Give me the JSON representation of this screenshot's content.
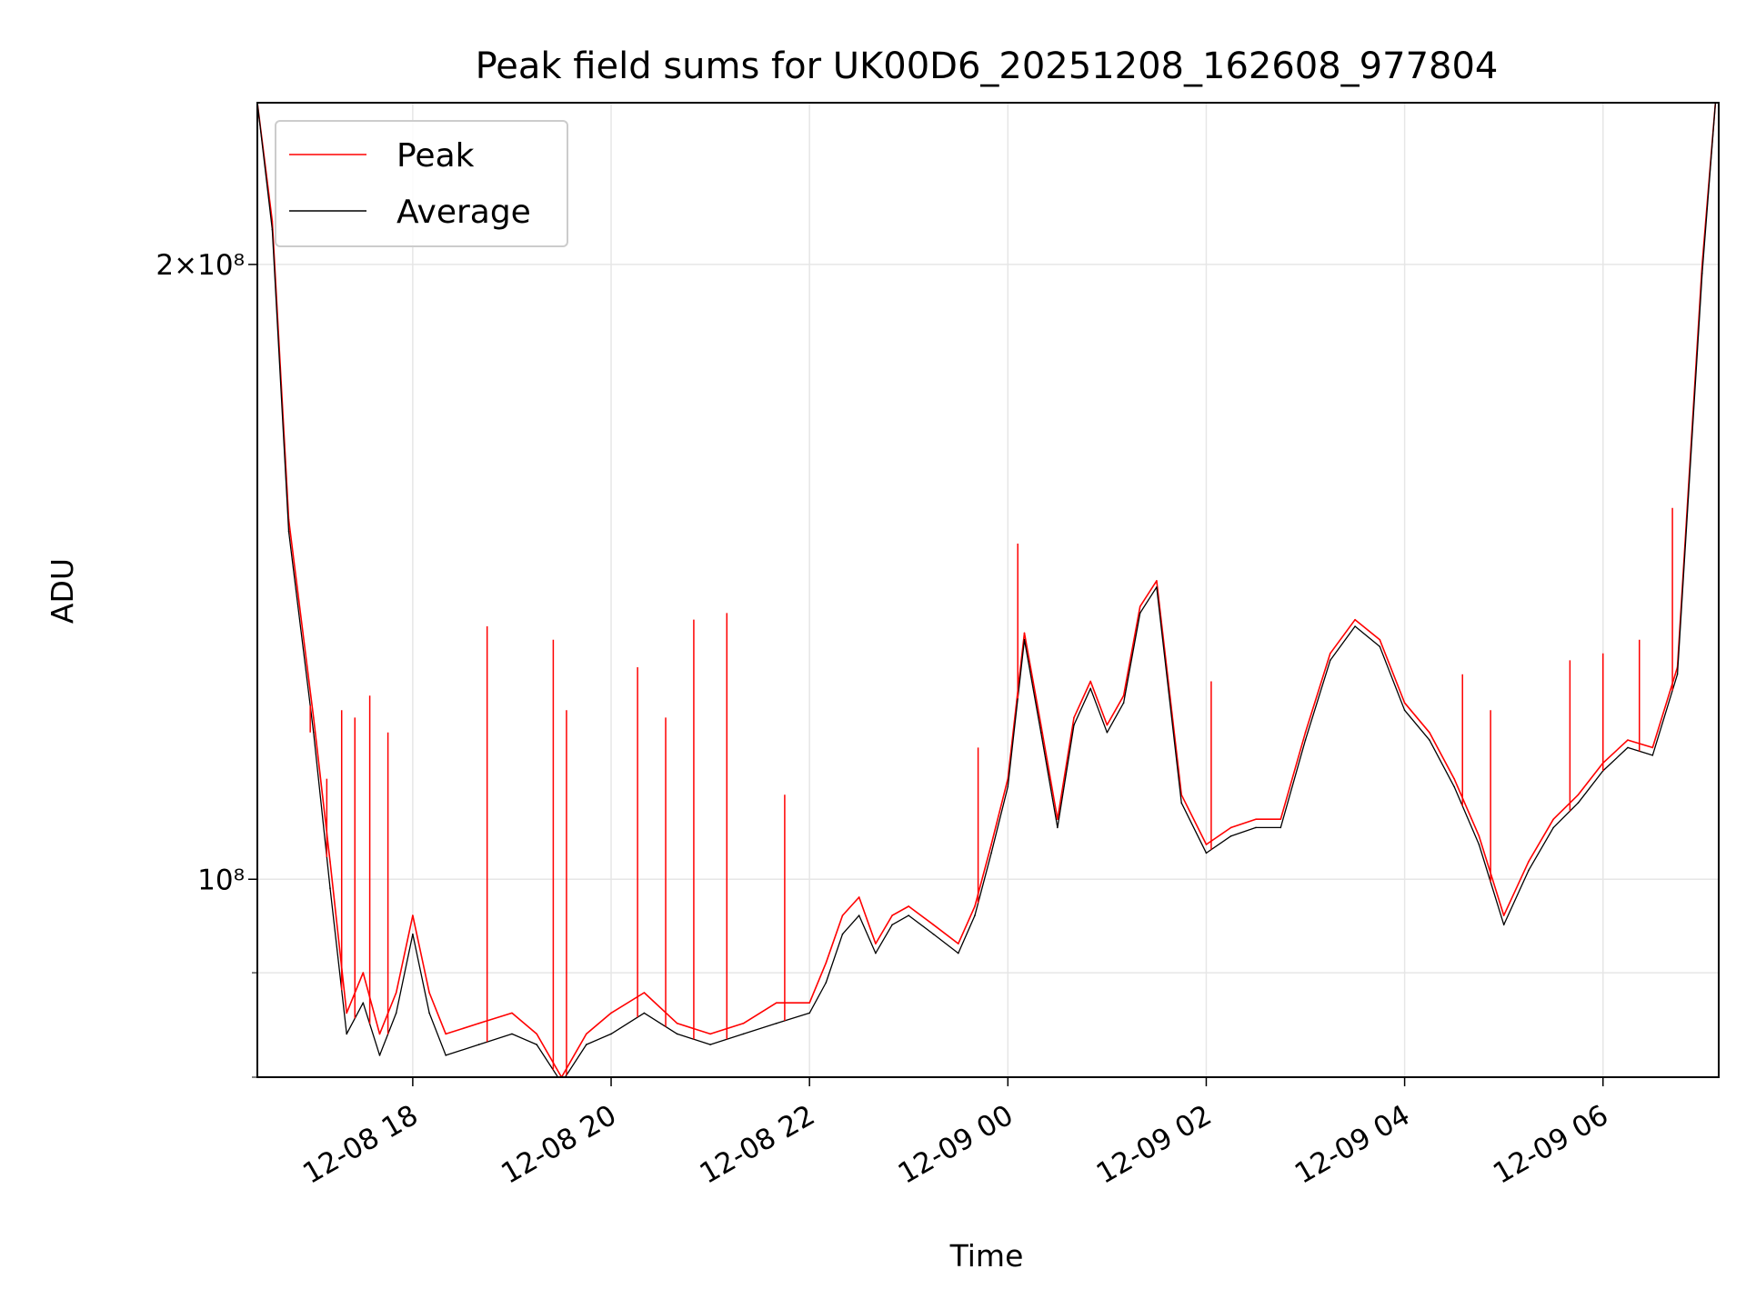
{
  "chart_data": {
    "type": "line",
    "title": "Peak field sums for UK00D6_20251208_162608_977804",
    "xlabel": "Time",
    "ylabel": "ADU",
    "yscale": "log",
    "ylim": [
      80000000,
      240000000
    ],
    "xlim": [
      "2025-12-08 16:26",
      "2025-12-09 07:10"
    ],
    "x_ticks": [
      "12-08 18",
      "12-08 20",
      "12-08 22",
      "12-09 00",
      "12-09 02",
      "12-09 04",
      "12-09 06"
    ],
    "y_ticks": [
      "2×10⁸",
      "10⁸"
    ],
    "grid": true,
    "legend_position": "upper-left",
    "series": [
      {
        "name": "Peak",
        "color": "#ff0000",
        "x": [
          "2025-12-08 16:26",
          "2025-12-08 16:35",
          "2025-12-08 16:45",
          "2025-12-08 17:00",
          "2025-12-08 17:10",
          "2025-12-08 17:20",
          "2025-12-08 17:30",
          "2025-12-08 17:40",
          "2025-12-08 17:50",
          "2025-12-08 18:00",
          "2025-12-08 18:10",
          "2025-12-08 18:20",
          "2025-12-08 18:40",
          "2025-12-08 19:00",
          "2025-12-08 19:15",
          "2025-12-08 19:30",
          "2025-12-08 19:45",
          "2025-12-08 20:00",
          "2025-12-08 20:20",
          "2025-12-08 20:40",
          "2025-12-08 21:00",
          "2025-12-08 21:20",
          "2025-12-08 21:40",
          "2025-12-08 22:00",
          "2025-12-08 22:10",
          "2025-12-08 22:20",
          "2025-12-08 22:30",
          "2025-12-08 22:40",
          "2025-12-08 22:50",
          "2025-12-08 23:00",
          "2025-12-08 23:15",
          "2025-12-08 23:30",
          "2025-12-08 23:40",
          "2025-12-08 23:50",
          "2025-12-09 00:00",
          "2025-12-09 00:10",
          "2025-12-09 00:20",
          "2025-12-09 00:30",
          "2025-12-09 00:40",
          "2025-12-09 00:50",
          "2025-12-09 01:00",
          "2025-12-09 01:10",
          "2025-12-09 01:20",
          "2025-12-09 01:30",
          "2025-12-09 01:45",
          "2025-12-09 02:00",
          "2025-12-09 02:15",
          "2025-12-09 02:30",
          "2025-12-09 02:45",
          "2025-12-09 03:00",
          "2025-12-09 03:15",
          "2025-12-09 03:30",
          "2025-12-09 03:45",
          "2025-12-09 04:00",
          "2025-12-09 04:15",
          "2025-12-09 04:30",
          "2025-12-09 04:45",
          "2025-12-09 05:00",
          "2025-12-09 05:15",
          "2025-12-09 05:30",
          "2025-12-09 05:45",
          "2025-12-09 06:00",
          "2025-12-09 06:15",
          "2025-12-09 06:30",
          "2025-12-09 06:45",
          "2025-12-09 07:00",
          "2025-12-09 07:08"
        ],
        "y": [
          240000000,
          210000000,
          150000000,
          120000000,
          102000000,
          86000000,
          90000000,
          84000000,
          88000000,
          96000000,
          88000000,
          84000000,
          85000000,
          86000000,
          84000000,
          80000000,
          84000000,
          86000000,
          88000000,
          85000000,
          84000000,
          85000000,
          87000000,
          87000000,
          91000000,
          96000000,
          98000000,
          93000000,
          96000000,
          97000000,
          95000000,
          93000000,
          97000000,
          104000000,
          112000000,
          132000000,
          119000000,
          107000000,
          120000000,
          125000000,
          119000000,
          123000000,
          136000000,
          140000000,
          110000000,
          104000000,
          106000000,
          107000000,
          107000000,
          118000000,
          129000000,
          134000000,
          131000000,
          122000000,
          118000000,
          112000000,
          105000000,
          96000000,
          102000000,
          107000000,
          110000000,
          114000000,
          117000000,
          116000000,
          127000000,
          200000000,
          240000000
        ]
      },
      {
        "name": "Average",
        "color": "#000000",
        "x": [
          "2025-12-08 16:26",
          "2025-12-08 16:35",
          "2025-12-08 16:45",
          "2025-12-08 17:00",
          "2025-12-08 17:10",
          "2025-12-08 17:20",
          "2025-12-08 17:30",
          "2025-12-08 17:40",
          "2025-12-08 17:50",
          "2025-12-08 18:00",
          "2025-12-08 18:10",
          "2025-12-08 18:20",
          "2025-12-08 18:40",
          "2025-12-08 19:00",
          "2025-12-08 19:15",
          "2025-12-08 19:30",
          "2025-12-08 19:45",
          "2025-12-08 20:00",
          "2025-12-08 20:20",
          "2025-12-08 20:40",
          "2025-12-08 21:00",
          "2025-12-08 21:20",
          "2025-12-08 21:40",
          "2025-12-08 22:00",
          "2025-12-08 22:10",
          "2025-12-08 22:20",
          "2025-12-08 22:30",
          "2025-12-08 22:40",
          "2025-12-08 22:50",
          "2025-12-08 23:00",
          "2025-12-08 23:15",
          "2025-12-08 23:30",
          "2025-12-08 23:40",
          "2025-12-08 23:50",
          "2025-12-09 00:00",
          "2025-12-09 00:10",
          "2025-12-09 00:20",
          "2025-12-09 00:30",
          "2025-12-09 00:40",
          "2025-12-09 00:50",
          "2025-12-09 01:00",
          "2025-12-09 01:10",
          "2025-12-09 01:20",
          "2025-12-09 01:30",
          "2025-12-09 01:45",
          "2025-12-09 02:00",
          "2025-12-09 02:15",
          "2025-12-09 02:30",
          "2025-12-09 02:45",
          "2025-12-09 03:00",
          "2025-12-09 03:15",
          "2025-12-09 03:30",
          "2025-12-09 03:45",
          "2025-12-09 04:00",
          "2025-12-09 04:15",
          "2025-12-09 04:30",
          "2025-12-09 04:45",
          "2025-12-09 05:00",
          "2025-12-09 05:15",
          "2025-12-09 05:30",
          "2025-12-09 05:45",
          "2025-12-09 06:00",
          "2025-12-09 06:15",
          "2025-12-09 06:30",
          "2025-12-09 06:45",
          "2025-12-09 07:00",
          "2025-12-09 07:08"
        ],
        "y": [
          240000000,
          208000000,
          148000000,
          118000000,
          99000000,
          84000000,
          87000000,
          82000000,
          86000000,
          94000000,
          86000000,
          82000000,
          83000000,
          84000000,
          83000000,
          79500000,
          83000000,
          84000000,
          86000000,
          84000000,
          83000000,
          84000000,
          85000000,
          86000000,
          89000000,
          94000000,
          96000000,
          92000000,
          95000000,
          96000000,
          94000000,
          92000000,
          96000000,
          103000000,
          111000000,
          131000000,
          118000000,
          106000000,
          119000000,
          124000000,
          118000000,
          122000000,
          135000000,
          139000000,
          109000000,
          103000000,
          105000000,
          106000000,
          106000000,
          117000000,
          128000000,
          133000000,
          130000000,
          121000000,
          117000000,
          111000000,
          104000000,
          95000000,
          101000000,
          106000000,
          109000000,
          113000000,
          116000000,
          115000000,
          126000000,
          198000000,
          240000000
        ]
      }
    ],
    "spikes": {
      "series": "Peak",
      "color": "#ff0000",
      "x": [
        "2025-12-08 16:58",
        "2025-12-08 17:08",
        "2025-12-08 17:17",
        "2025-12-08 17:25",
        "2025-12-08 17:34",
        "2025-12-08 17:45",
        "2025-12-08 18:45",
        "2025-12-08 19:25",
        "2025-12-08 19:33",
        "2025-12-08 20:16",
        "2025-12-08 20:33",
        "2025-12-08 20:50",
        "2025-12-08 21:10",
        "2025-12-08 21:45",
        "2025-12-08 23:42",
        "2025-12-09 00:06",
        "2025-12-09 02:03",
        "2025-12-09 04:35",
        "2025-12-09 04:52",
        "2025-12-09 05:40",
        "2025-12-09 06:00",
        "2025-12-09 06:22",
        "2025-12-09 06:42"
      ],
      "y": [
        118000000,
        112000000,
        121000000,
        120000000,
        123000000,
        118000000,
        133000000,
        131000000,
        121000000,
        127000000,
        120000000,
        134000000,
        135000000,
        110000000,
        116000000,
        146000000,
        125000000,
        126000000,
        121000000,
        128000000,
        129000000,
        131000000,
        152000000
      ]
    }
  }
}
